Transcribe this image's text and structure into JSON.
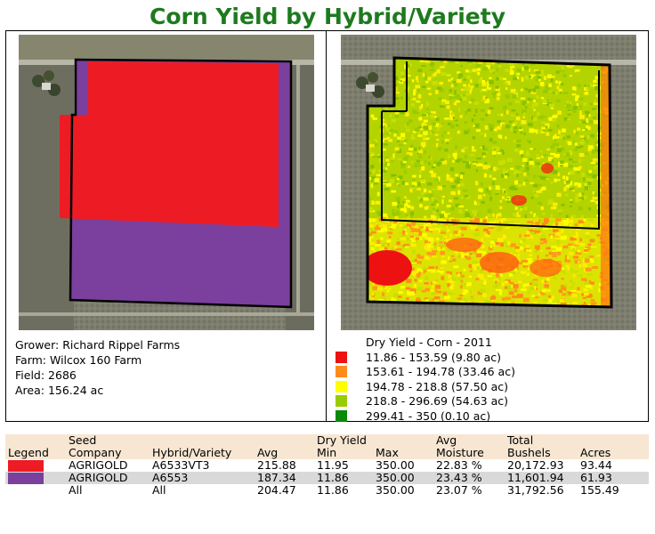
{
  "title": "Corn Yield by Hybrid/Variety",
  "field_info": {
    "grower": "Grower: Richard Rippel Farms",
    "farm": "Farm: Wilcox 160 Farm",
    "field": "Field: 2686",
    "area": "Area: 156.24 ac"
  },
  "hybrid_colors": {
    "A6533VT3": "#ed1c24",
    "A6553": "#7b3f9e"
  },
  "yield_legend": {
    "title": "Dry Yield - Corn - 2011",
    "items": [
      {
        "label": "11.86 - 153.59 (9.80 ac)",
        "color": "#ee1111"
      },
      {
        "label": "153.61 - 194.78 (33.46 ac)",
        "color": "#ff8c1a"
      },
      {
        "label": "194.78 - 218.8 (57.50 ac)",
        "color": "#ffff00"
      },
      {
        "label": "218.8 - 296.69 (54.63 ac)",
        "color": "#99cc00"
      },
      {
        "label": "299.41 - 350 (0.10 ac)",
        "color": "#0a8a0a"
      }
    ]
  },
  "table": {
    "header1": {
      "legend": "",
      "seed": "Seed",
      "hybrid": "",
      "avg": "",
      "dry_yield": "Dry Yield",
      "max": "",
      "avg_moist": "Avg",
      "total": "Total",
      "acres": ""
    },
    "header2": {
      "legend": "Legend",
      "seed": "Company",
      "hybrid": "Hybrid/Variety",
      "avg": "Avg",
      "min": "Min",
      "max": "Max",
      "moisture": "Moisture",
      "bushels": "Bushels",
      "acres": "Acres"
    },
    "rows": [
      {
        "color": "#ed1c24",
        "company": "AGRIGOLD",
        "hybrid": "A6533VT3",
        "avg": "215.88",
        "min": "11.95",
        "max": "350.00",
        "moisture": "22.83 %",
        "bushels": "20,172.93",
        "acres": "93.44"
      },
      {
        "color": "#7b3f9e",
        "company": "AGRIGOLD",
        "hybrid": "A6553",
        "avg": "187.34",
        "min": "11.86",
        "max": "350.00",
        "moisture": "23.43 %",
        "bushels": "11,601.94",
        "acres": "61.93"
      },
      {
        "color": "",
        "company": "All",
        "hybrid": "All",
        "avg": "204.47",
        "min": "11.86",
        "max": "350.00",
        "moisture": "23.07 %",
        "bushels": "31,792.56",
        "acres": "155.49"
      }
    ]
  }
}
